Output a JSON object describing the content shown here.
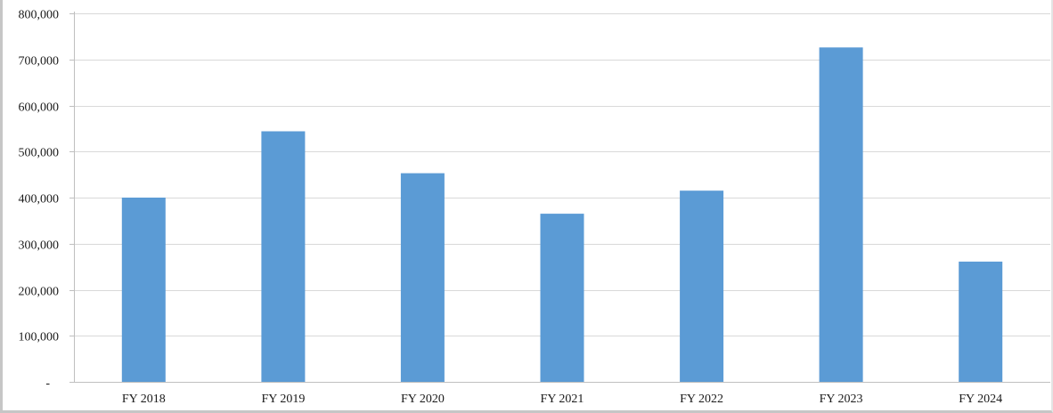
{
  "chart_data": {
    "type": "bar",
    "title": "",
    "xlabel": "",
    "ylabel": "",
    "categories": [
      "FY 2018",
      "FY 2019",
      "FY 2020",
      "FY 2021",
      "FY 2022",
      "FY 2023",
      "FY 2024"
    ],
    "values": [
      400000,
      544000,
      453000,
      365000,
      415000,
      726000,
      261000
    ],
    "ylim": [
      0,
      800000
    ],
    "y_ticks": [
      0,
      100000,
      200000,
      300000,
      400000,
      500000,
      600000,
      700000,
      800000
    ],
    "y_tick_labels": [
      "-",
      "100,000",
      "200,000",
      "300,000",
      "400,000",
      "500,000",
      "600,000",
      "700,000",
      "800,000"
    ],
    "grid": true,
    "legend": "none",
    "bar_color": "#5b9bd5",
    "grid_color": "#d9d9d9",
    "axis_color": "#bfbfbf"
  }
}
